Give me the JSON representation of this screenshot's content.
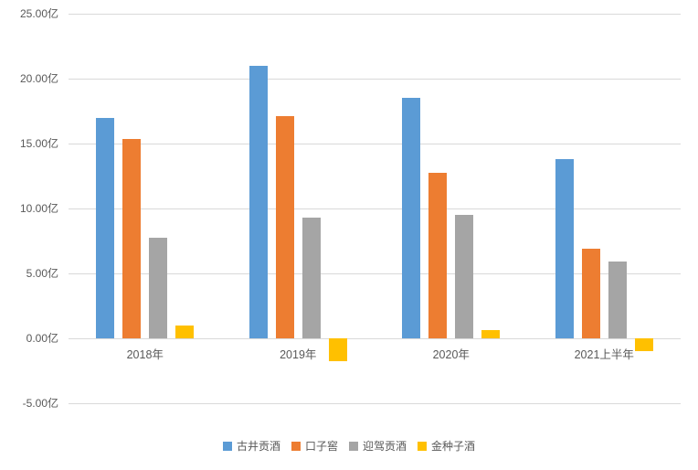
{
  "chart_data": {
    "type": "bar",
    "title": "",
    "categories": [
      "2018年",
      "2019年",
      "2020年",
      "2021上半年"
    ],
    "series": [
      {
        "name": "古井贡酒",
        "color": "#5B9BD5",
        "values": [
          16.95,
          20.98,
          18.55,
          13.8
        ]
      },
      {
        "name": "口子窖",
        "color": "#ED7D31",
        "values": [
          15.33,
          17.12,
          12.76,
          6.9
        ]
      },
      {
        "name": "迎驾贡酒",
        "color": "#A5A5A5",
        "values": [
          7.77,
          9.31,
          9.53,
          5.95
        ]
      },
      {
        "name": "金种子酒",
        "color": "#FFC000",
        "values": [
          0.98,
          -1.74,
          0.66,
          -0.98
        ]
      }
    ],
    "xlabel": "",
    "ylabel": "",
    "ylim": [
      -5,
      25
    ],
    "ytick_step": 5,
    "ytick_suffix": "亿",
    "ytick_labels": [
      "25.00亿",
      "20.00亿",
      "15.00亿",
      "10.00亿",
      "5.00亿",
      "0.00亿",
      "-5.00亿"
    ],
    "grid": true,
    "legend_position": "bottom"
  }
}
